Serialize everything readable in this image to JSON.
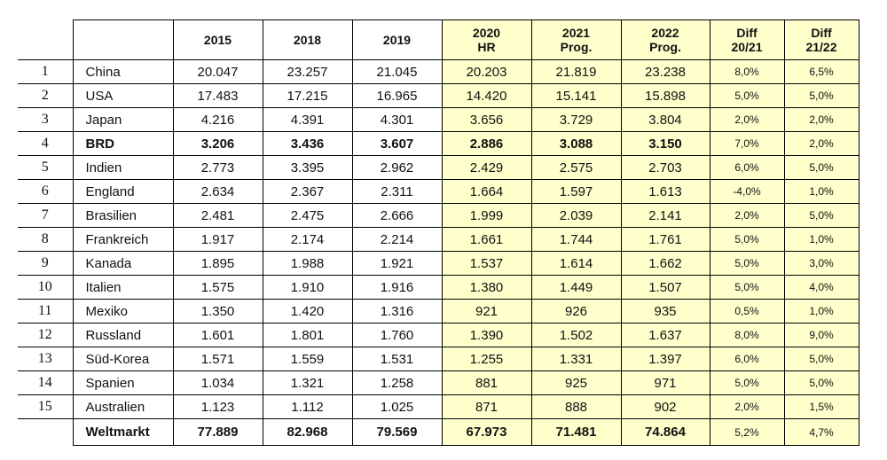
{
  "table": {
    "header": [
      "",
      "",
      "2015",
      "2018",
      "2019",
      "2020\nHR",
      "2021\nProg.",
      "2022\nProg.",
      "Diff\n20/21",
      "Diff\n21/22"
    ],
    "rows": [
      [
        "1",
        "China",
        "20.047",
        "23.257",
        "21.045",
        "20.203",
        "21.819",
        "23.238",
        "8,0%",
        "6,5%"
      ],
      [
        "2",
        "USA",
        "17.483",
        "17.215",
        "16.965",
        "14.420",
        "15.141",
        "15.898",
        "5,0%",
        "5,0%"
      ],
      [
        "3",
        "Japan",
        "4.216",
        "4.391",
        "4.301",
        "3.656",
        "3.729",
        "3.804",
        "2,0%",
        "2,0%"
      ],
      [
        "4",
        "BRD",
        "3.206",
        "3.436",
        "3.607",
        "2.886",
        "3.088",
        "3.150",
        "7,0%",
        "2,0%"
      ],
      [
        "5",
        "Indien",
        "2.773",
        "3.395",
        "2.962",
        "2.429",
        "2.575",
        "2.703",
        "6,0%",
        "5,0%"
      ],
      [
        "6",
        "England",
        "2.634",
        "2.367",
        "2.311",
        "1.664",
        "1.597",
        "1.613",
        "-4,0%",
        "1,0%"
      ],
      [
        "7",
        "Brasilien",
        "2.481",
        "2.475",
        "2.666",
        "1.999",
        "2.039",
        "2.141",
        "2,0%",
        "5,0%"
      ],
      [
        "8",
        "Frankreich",
        "1.917",
        "2.174",
        "2.214",
        "1.661",
        "1.744",
        "1.761",
        "5,0%",
        "1,0%"
      ],
      [
        "9",
        "Kanada",
        "1.895",
        "1.988",
        "1.921",
        "1.537",
        "1.614",
        "1.662",
        "5,0%",
        "3,0%"
      ],
      [
        "10",
        "Italien",
        "1.575",
        "1.910",
        "1.916",
        "1.380",
        "1.449",
        "1.507",
        "5,0%",
        "4,0%"
      ],
      [
        "11",
        "Mexiko",
        "1.350",
        "1.420",
        "1.316",
        "921",
        "926",
        "935",
        "0,5%",
        "1,0%"
      ],
      [
        "12",
        "Russland",
        "1.601",
        "1.801",
        "1.760",
        "1.390",
        "1.502",
        "1.637",
        "8,0%",
        "9,0%"
      ],
      [
        "13",
        "Süd-Korea",
        "1.571",
        "1.559",
        "1.531",
        "1.255",
        "1.331",
        "1.397",
        "6,0%",
        "5,0%"
      ],
      [
        "14",
        "Spanien",
        "1.034",
        "1.321",
        "1.258",
        "881",
        "925",
        "971",
        "5,0%",
        "5,0%"
      ],
      [
        "15",
        "Australien",
        "1.123",
        "1.112",
        "1.025",
        "871",
        "888",
        "902",
        "2,0%",
        "1,5%"
      ]
    ],
    "footer": [
      "",
      "Weltmarkt",
      "77.889",
      "82.968",
      "79.569",
      "67.973",
      "71.481",
      "74.864",
      "5,2%",
      "4,7%"
    ]
  }
}
